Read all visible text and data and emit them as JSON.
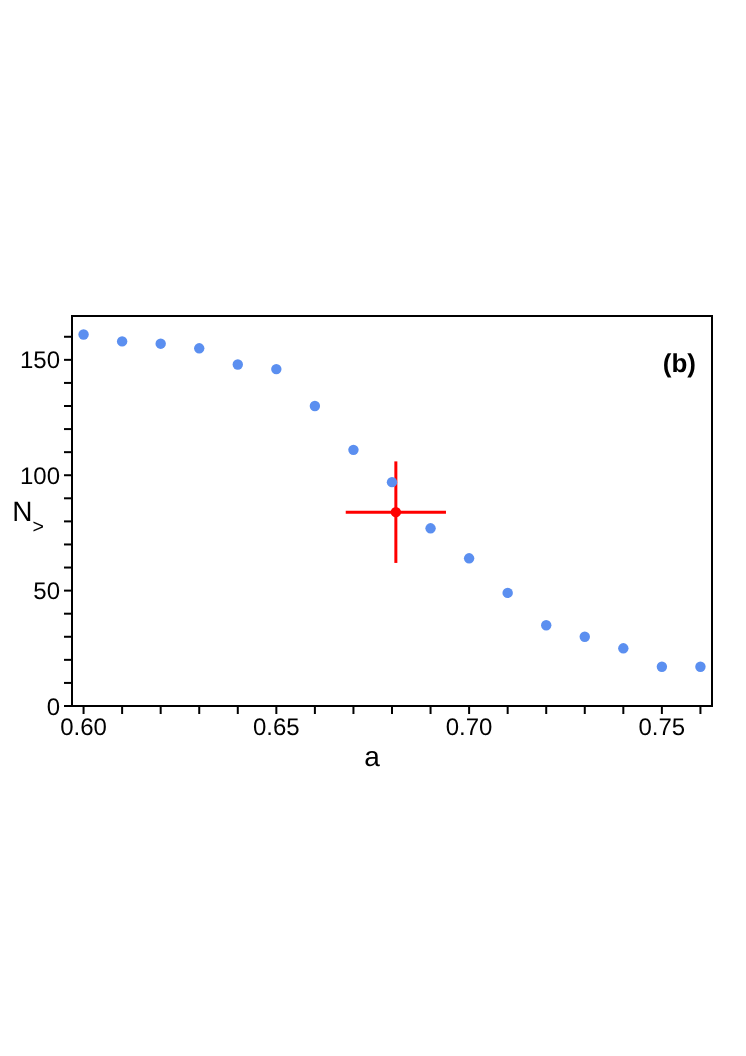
{
  "chart_data": {
    "type": "scatter",
    "xlabel": "a",
    "ylabel": "N$_{>}$",
    "annotations": [
      "(b)"
    ],
    "xlim": [
      0.597,
      0.763
    ],
    "ylim": [
      0,
      169
    ],
    "xticks": [
      {
        "value": 0.6,
        "label": "0.60"
      },
      {
        "value": 0.61,
        "label": null
      },
      {
        "value": 0.62,
        "label": null
      },
      {
        "value": 0.63,
        "label": null
      },
      {
        "value": 0.64,
        "label": null
      },
      {
        "value": 0.65,
        "label": "0.65"
      },
      {
        "value": 0.66,
        "label": null
      },
      {
        "value": 0.67,
        "label": null
      },
      {
        "value": 0.68,
        "label": null
      },
      {
        "value": 0.69,
        "label": null
      },
      {
        "value": 0.7,
        "label": "0.70"
      },
      {
        "value": 0.71,
        "label": null
      },
      {
        "value": 0.72,
        "label": null
      },
      {
        "value": 0.73,
        "label": null
      },
      {
        "value": 0.74,
        "label": null
      },
      {
        "value": 0.75,
        "label": "0.75"
      },
      {
        "value": 0.76,
        "label": null
      }
    ],
    "yticks": [
      0,
      {
        "value": 10,
        "label": null
      },
      {
        "value": 20,
        "label": null
      },
      {
        "value": 30,
        "label": null
      },
      {
        "value": 40,
        "label": null
      },
      50,
      {
        "value": 60,
        "label": null
      },
      {
        "value": 70,
        "label": null
      },
      {
        "value": 80,
        "label": null
      },
      {
        "value": 90,
        "label": null
      },
      100,
      {
        "value": 110,
        "label": null
      },
      {
        "value": 120,
        "label": null
      },
      {
        "value": 130,
        "label": null
      },
      {
        "value": 140,
        "label": null
      },
      150,
      {
        "value": 160,
        "label": null
      }
    ],
    "marker": "circle",
    "series": [
      {
        "color": "#5b8ff0",
        "x": [
          0.6,
          0.61,
          0.62,
          0.63,
          0.64,
          0.65,
          0.66,
          0.67,
          0.68,
          0.69,
          0.7,
          0.71,
          0.72,
          0.73,
          0.74,
          0.75,
          0.76
        ],
        "values": [
          161,
          158,
          157,
          155,
          148,
          146,
          130,
          111,
          97,
          77,
          64,
          49,
          35,
          30,
          25,
          17,
          17
        ]
      },
      {
        "color": "#ff0000",
        "x": [
          0.681
        ],
        "values": [
          84
        ],
        "errors": [
          [
            62,
            106
          ]
        ],
        "xerrors": [
          [
            0.668,
            0.694
          ]
        ]
      }
    ]
  }
}
